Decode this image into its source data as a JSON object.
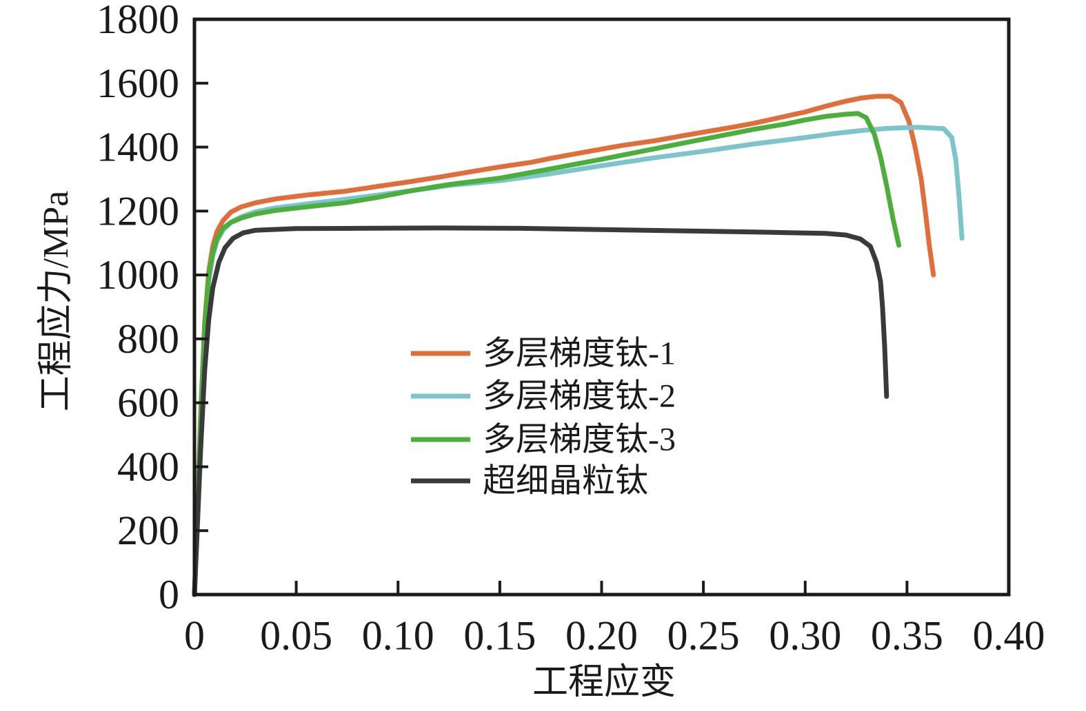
{
  "chart_data": {
    "type": "line",
    "title": "",
    "xlabel": "工程应变",
    "ylabel": "工程应力/MPa",
    "xlim": [
      0,
      0.4
    ],
    "ylim": [
      0,
      1800
    ],
    "grid": false,
    "legend_position": "inside center-left",
    "x_ticks": {
      "values": [
        0,
        0.05,
        0.1,
        0.15,
        0.2,
        0.25,
        0.3,
        0.35,
        0.4
      ],
      "labels": [
        "0",
        "0.05",
        "0.10",
        "0.15",
        "0.20",
        "0.25",
        "0.30",
        "0.35",
        "0.40"
      ]
    },
    "y_ticks": {
      "values": [
        0,
        200,
        400,
        600,
        800,
        1000,
        1200,
        1400,
        1600,
        1800
      ],
      "labels": [
        "0",
        "200",
        "400",
        "600",
        "800",
        "1000",
        "1200",
        "1400",
        "1600",
        "1800"
      ]
    },
    "axis_color": "#1a1a1a",
    "series": [
      {
        "name": "多层梯度钛-1",
        "color": "#E06E3A",
        "points": [
          [
            0,
            0
          ],
          [
            0.001,
            180
          ],
          [
            0.003,
            560
          ],
          [
            0.005,
            850
          ],
          [
            0.007,
            1010
          ],
          [
            0.009,
            1090
          ],
          [
            0.011,
            1135
          ],
          [
            0.014,
            1170
          ],
          [
            0.018,
            1197
          ],
          [
            0.023,
            1213
          ],
          [
            0.03,
            1226
          ],
          [
            0.04,
            1238
          ],
          [
            0.055,
            1250
          ],
          [
            0.074,
            1262
          ],
          [
            0.09,
            1277
          ],
          [
            0.105,
            1291
          ],
          [
            0.12,
            1306
          ],
          [
            0.135,
            1322
          ],
          [
            0.15,
            1338
          ],
          [
            0.165,
            1352
          ],
          [
            0.175,
            1365
          ],
          [
            0.195,
            1388
          ],
          [
            0.21,
            1405
          ],
          [
            0.226,
            1420
          ],
          [
            0.24,
            1436
          ],
          [
            0.25,
            1447
          ],
          [
            0.265,
            1463
          ],
          [
            0.275,
            1475
          ],
          [
            0.29,
            1496
          ],
          [
            0.3,
            1510
          ],
          [
            0.31,
            1528
          ],
          [
            0.32,
            1544
          ],
          [
            0.328,
            1554
          ],
          [
            0.335,
            1559
          ],
          [
            0.342,
            1559
          ],
          [
            0.347,
            1540
          ],
          [
            0.351,
            1480
          ],
          [
            0.354,
            1400
          ],
          [
            0.357,
            1300
          ],
          [
            0.359,
            1200
          ],
          [
            0.361,
            1090
          ],
          [
            0.363,
            1000
          ]
        ]
      },
      {
        "name": "多层梯度钛-2",
        "color": "#7EC4CC",
        "points": [
          [
            0,
            0
          ],
          [
            0.001,
            170
          ],
          [
            0.003,
            530
          ],
          [
            0.005,
            820
          ],
          [
            0.007,
            980
          ],
          [
            0.009,
            1060
          ],
          [
            0.011,
            1105
          ],
          [
            0.014,
            1140
          ],
          [
            0.018,
            1165
          ],
          [
            0.023,
            1182
          ],
          [
            0.03,
            1198
          ],
          [
            0.04,
            1210
          ],
          [
            0.055,
            1222
          ],
          [
            0.074,
            1237
          ],
          [
            0.09,
            1250
          ],
          [
            0.107,
            1264
          ],
          [
            0.125,
            1280
          ],
          [
            0.15,
            1295
          ],
          [
            0.175,
            1317
          ],
          [
            0.2,
            1342
          ],
          [
            0.226,
            1367
          ],
          [
            0.25,
            1387
          ],
          [
            0.275,
            1410
          ],
          [
            0.3,
            1430
          ],
          [
            0.315,
            1443
          ],
          [
            0.328,
            1452
          ],
          [
            0.341,
            1459
          ],
          [
            0.355,
            1462
          ],
          [
            0.368,
            1458
          ],
          [
            0.372,
            1430
          ],
          [
            0.374,
            1360
          ],
          [
            0.3755,
            1250
          ],
          [
            0.377,
            1115
          ]
        ]
      },
      {
        "name": "多层梯度钛-3",
        "color": "#4CAE3B",
        "points": [
          [
            0,
            0
          ],
          [
            0.001,
            175
          ],
          [
            0.003,
            545
          ],
          [
            0.005,
            835
          ],
          [
            0.007,
            995
          ],
          [
            0.009,
            1070
          ],
          [
            0.011,
            1112
          ],
          [
            0.014,
            1146
          ],
          [
            0.018,
            1165
          ],
          [
            0.023,
            1178
          ],
          [
            0.03,
            1191
          ],
          [
            0.04,
            1202
          ],
          [
            0.055,
            1213
          ],
          [
            0.074,
            1226
          ],
          [
            0.09,
            1243
          ],
          [
            0.107,
            1264
          ],
          [
            0.125,
            1283
          ],
          [
            0.15,
            1303
          ],
          [
            0.175,
            1332
          ],
          [
            0.2,
            1362
          ],
          [
            0.226,
            1395
          ],
          [
            0.25,
            1425
          ],
          [
            0.275,
            1456
          ],
          [
            0.29,
            1472
          ],
          [
            0.3,
            1485
          ],
          [
            0.31,
            1496
          ],
          [
            0.32,
            1503
          ],
          [
            0.326,
            1505
          ],
          [
            0.33,
            1492
          ],
          [
            0.334,
            1440
          ],
          [
            0.337,
            1370
          ],
          [
            0.34,
            1280
          ],
          [
            0.343,
            1180
          ],
          [
            0.346,
            1093
          ]
        ]
      },
      {
        "name": "超细晶粒钛",
        "color": "#3A3A3C",
        "points": [
          [
            0,
            0
          ],
          [
            0.001,
            150
          ],
          [
            0.003,
            450
          ],
          [
            0.005,
            700
          ],
          [
            0.007,
            860
          ],
          [
            0.009,
            960
          ],
          [
            0.012,
            1040
          ],
          [
            0.015,
            1085
          ],
          [
            0.019,
            1115
          ],
          [
            0.024,
            1132
          ],
          [
            0.03,
            1140
          ],
          [
            0.05,
            1145
          ],
          [
            0.08,
            1146
          ],
          [
            0.12,
            1147
          ],
          [
            0.16,
            1146
          ],
          [
            0.2,
            1142
          ],
          [
            0.24,
            1138
          ],
          [
            0.28,
            1134
          ],
          [
            0.31,
            1130
          ],
          [
            0.32,
            1125
          ],
          [
            0.327,
            1113
          ],
          [
            0.332,
            1090
          ],
          [
            0.335,
            1040
          ],
          [
            0.337,
            980
          ],
          [
            0.338,
            900
          ],
          [
            0.339,
            780
          ],
          [
            0.3395,
            700
          ],
          [
            0.34,
            620
          ]
        ]
      }
    ]
  }
}
